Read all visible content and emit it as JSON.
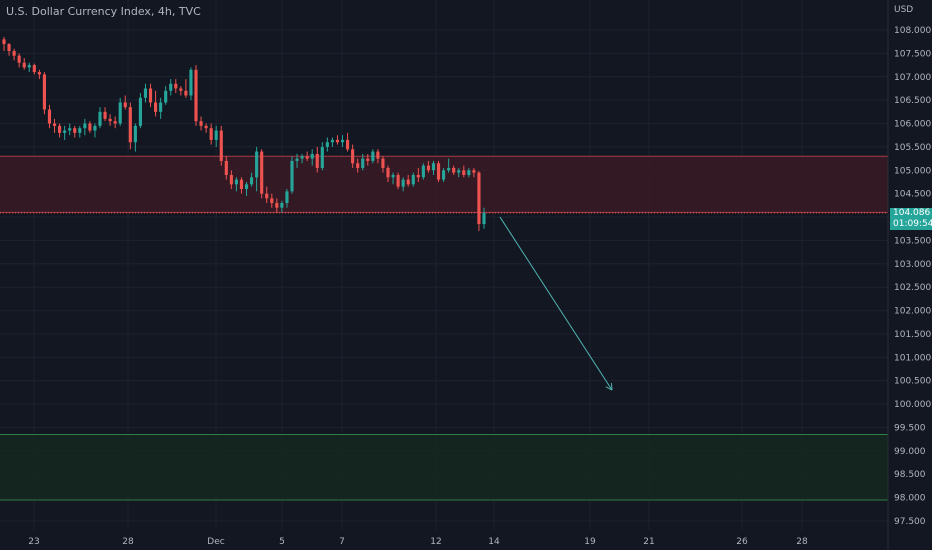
{
  "title": "U.S. Dollar Currency Index, 4h, TVC",
  "currency": "USD",
  "colors": {
    "background": "#131722",
    "grid": "#1e2230",
    "up": "#26a69a",
    "down": "#ef5350",
    "resistance_fill": "#3a1a24",
    "resistance_edge": "#a63a46",
    "support_fill": "#15281f",
    "support_edge": "#2e7d44",
    "arrow": "#4fb3b0",
    "price_tag": "#26a69a"
  },
  "price_tag": {
    "price": "104.086",
    "countdown": "01:09:54"
  },
  "chart_data": {
    "type": "candlestick",
    "y_ticks": [
      "108.000",
      "107.500",
      "107.000",
      "106.500",
      "106.000",
      "105.500",
      "105.000",
      "104.500",
      "104.000",
      "103.500",
      "103.000",
      "102.500",
      "102.000",
      "101.500",
      "101.000",
      "100.500",
      "100.000",
      "99.500",
      "99.000",
      "98.500",
      "98.000",
      "97.500"
    ],
    "x_ticks": [
      "23",
      "28",
      "Dec",
      "5",
      "7",
      "12",
      "14",
      "19",
      "21",
      "26",
      "28"
    ],
    "ylim": [
      97.3,
      108.6
    ],
    "resistance_zone": [
      104.1,
      105.3
    ],
    "support_zone": [
      97.95,
      99.35
    ],
    "projection_arrow": {
      "from": 104.0,
      "to": 100.3
    },
    "candles": [
      [
        107.8,
        107.85,
        107.55,
        107.7
      ],
      [
        107.7,
        107.72,
        107.45,
        107.55
      ],
      [
        107.55,
        107.6,
        107.35,
        107.45
      ],
      [
        107.45,
        107.5,
        107.2,
        107.3
      ],
      [
        107.3,
        107.4,
        107.15,
        107.2
      ],
      [
        107.2,
        107.3,
        107.1,
        107.25
      ],
      [
        107.25,
        107.28,
        107.05,
        107.1
      ],
      [
        107.1,
        107.15,
        106.95,
        107.05
      ],
      [
        107.05,
        107.1,
        106.2,
        106.3
      ],
      [
        106.3,
        106.4,
        105.9,
        106.0
      ],
      [
        106.0,
        106.1,
        105.8,
        105.95
      ],
      [
        105.95,
        106.0,
        105.7,
        105.8
      ],
      [
        105.8,
        105.95,
        105.65,
        105.85
      ],
      [
        105.85,
        106.0,
        105.75,
        105.9
      ],
      [
        105.9,
        105.95,
        105.7,
        105.8
      ],
      [
        105.8,
        105.95,
        105.7,
        105.9
      ],
      [
        105.9,
        106.1,
        105.75,
        106.0
      ],
      [
        106.0,
        106.05,
        105.8,
        105.85
      ],
      [
        105.85,
        106.0,
        105.7,
        105.95
      ],
      [
        105.95,
        106.35,
        105.9,
        106.25
      ],
      [
        106.25,
        106.35,
        106.05,
        106.1
      ],
      [
        106.1,
        106.2,
        105.95,
        106.05
      ],
      [
        106.05,
        106.15,
        105.9,
        106.0
      ],
      [
        106.0,
        106.55,
        105.95,
        106.45
      ],
      [
        106.45,
        106.6,
        106.3,
        106.35
      ],
      [
        106.35,
        106.45,
        105.45,
        105.6
      ],
      [
        105.6,
        106.0,
        105.4,
        105.95
      ],
      [
        105.95,
        106.65,
        105.9,
        106.55
      ],
      [
        106.55,
        106.85,
        106.45,
        106.75
      ],
      [
        106.75,
        106.85,
        106.35,
        106.45
      ],
      [
        106.45,
        106.7,
        106.15,
        106.25
      ],
      [
        106.25,
        106.55,
        106.1,
        106.45
      ],
      [
        106.45,
        106.8,
        106.4,
        106.7
      ],
      [
        106.7,
        106.95,
        106.6,
        106.85
      ],
      [
        106.85,
        106.95,
        106.65,
        106.75
      ],
      [
        106.75,
        106.8,
        106.6,
        106.7
      ],
      [
        106.7,
        106.95,
        106.55,
        106.6
      ],
      [
        106.6,
        107.2,
        106.5,
        107.15
      ],
      [
        107.15,
        107.25,
        105.95,
        106.05
      ],
      [
        106.05,
        106.15,
        105.85,
        105.95
      ],
      [
        105.95,
        106.0,
        105.8,
        105.9
      ],
      [
        105.9,
        106.0,
        105.55,
        105.65
      ],
      [
        105.65,
        105.95,
        105.5,
        105.85
      ],
      [
        105.85,
        105.95,
        105.1,
        105.2
      ],
      [
        105.2,
        105.3,
        104.8,
        104.9
      ],
      [
        104.9,
        105.0,
        104.6,
        104.7
      ],
      [
        104.7,
        104.85,
        104.55,
        104.8
      ],
      [
        104.8,
        104.85,
        104.5,
        104.6
      ],
      [
        104.6,
        104.75,
        104.45,
        104.7
      ],
      [
        104.7,
        104.95,
        104.65,
        104.85
      ],
      [
        104.85,
        105.5,
        104.55,
        105.4
      ],
      [
        105.4,
        105.45,
        104.4,
        104.5
      ],
      [
        104.5,
        104.65,
        104.3,
        104.4
      ],
      [
        104.4,
        104.5,
        104.2,
        104.3
      ],
      [
        104.3,
        104.4,
        104.1,
        104.2
      ],
      [
        104.2,
        104.35,
        104.1,
        104.3
      ],
      [
        104.3,
        104.6,
        104.2,
        104.55
      ],
      [
        104.55,
        105.3,
        104.5,
        105.2
      ],
      [
        105.2,
        105.35,
        105.05,
        105.25
      ],
      [
        105.25,
        105.35,
        105.15,
        105.3
      ],
      [
        105.3,
        105.4,
        105.2,
        105.25
      ],
      [
        105.25,
        105.45,
        105.1,
        105.35
      ],
      [
        105.35,
        105.5,
        104.95,
        105.05
      ],
      [
        105.05,
        105.6,
        105.0,
        105.5
      ],
      [
        105.5,
        105.7,
        105.4,
        105.6
      ],
      [
        105.6,
        105.7,
        105.5,
        105.65
      ],
      [
        105.65,
        105.75,
        105.55,
        105.6
      ],
      [
        105.6,
        105.75,
        105.5,
        105.65
      ],
      [
        105.65,
        105.8,
        105.4,
        105.45
      ],
      [
        105.45,
        105.55,
        105.05,
        105.15
      ],
      [
        105.15,
        105.25,
        104.95,
        105.05
      ],
      [
        105.05,
        105.35,
        105.0,
        105.25
      ],
      [
        105.25,
        105.35,
        105.1,
        105.2
      ],
      [
        105.2,
        105.45,
        105.15,
        105.4
      ],
      [
        105.4,
        105.45,
        105.15,
        105.25
      ],
      [
        105.25,
        105.3,
        104.95,
        105.05
      ],
      [
        105.05,
        105.1,
        104.75,
        104.85
      ],
      [
        104.85,
        104.95,
        104.7,
        104.9
      ],
      [
        104.9,
        104.95,
        104.6,
        104.65
      ],
      [
        104.65,
        104.85,
        104.55,
        104.8
      ],
      [
        104.8,
        104.9,
        104.65,
        104.7
      ],
      [
        104.7,
        104.95,
        104.65,
        104.9
      ],
      [
        104.9,
        105.05,
        104.75,
        104.85
      ],
      [
        104.85,
        105.15,
        104.8,
        105.1
      ],
      [
        105.1,
        105.2,
        104.95,
        105.0
      ],
      [
        105.0,
        105.2,
        104.9,
        105.15
      ],
      [
        105.15,
        105.2,
        104.75,
        104.8
      ],
      [
        104.8,
        105.05,
        104.75,
        105.0
      ],
      [
        105.0,
        105.25,
        104.95,
        105.05
      ],
      [
        105.05,
        105.1,
        104.9,
        104.95
      ],
      [
        104.95,
        105.05,
        104.85,
        105.0
      ],
      [
        105.0,
        105.1,
        104.85,
        104.9
      ],
      [
        104.9,
        105.05,
        104.85,
        105.0
      ],
      [
        105.0,
        105.05,
        104.85,
        104.95
      ],
      [
        104.95,
        104.98,
        103.7,
        103.85
      ],
      [
        103.85,
        104.2,
        103.75,
        104.09
      ]
    ]
  }
}
